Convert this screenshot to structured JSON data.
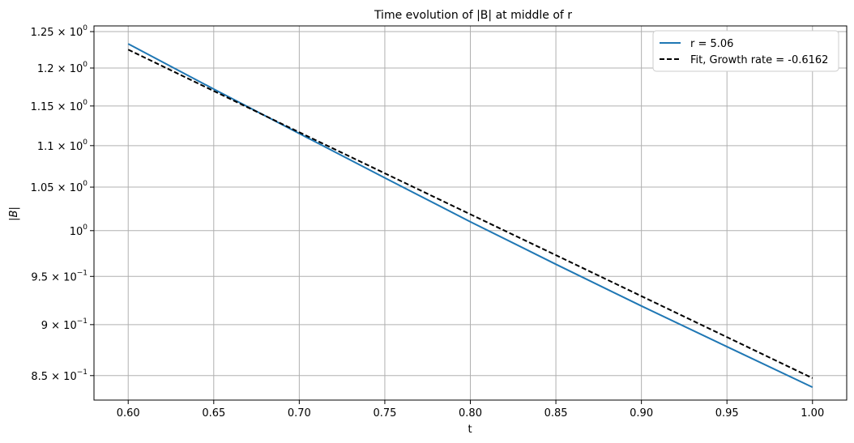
{
  "chart_data": {
    "type": "line",
    "title": "Time evolution of |B| at middle of r",
    "xlabel": "t",
    "ylabel": "|B|",
    "x_scale": "linear",
    "y_scale": "log",
    "xlim": [
      0.58,
      1.02
    ],
    "ylim": [
      0.827,
      1.258
    ],
    "grid": true,
    "legend_position": "top-right",
    "x_ticks": [
      0.6,
      0.65,
      0.7,
      0.75,
      0.8,
      0.85,
      0.9,
      0.95,
      1.0
    ],
    "x_tick_labels": [
      "0.60",
      "0.65",
      "0.70",
      "0.75",
      "0.80",
      "0.85",
      "0.90",
      "0.95",
      "1.00"
    ],
    "y_ticks": [
      {
        "value": 1.25,
        "mantissa": "1.25",
        "base": "10",
        "exp": "0"
      },
      {
        "value": 1.2,
        "mantissa": "1.2",
        "base": "10",
        "exp": "0"
      },
      {
        "value": 1.15,
        "mantissa": "1.15",
        "base": "10",
        "exp": "0"
      },
      {
        "value": 1.1,
        "mantissa": "1.1",
        "base": "10",
        "exp": "0"
      },
      {
        "value": 1.05,
        "mantissa": "1.05",
        "base": "10",
        "exp": "0"
      },
      {
        "value": 1.0,
        "mantissa": "",
        "base": "10",
        "exp": "0"
      },
      {
        "value": 0.95,
        "mantissa": "9.5",
        "base": "10",
        "exp": "−1"
      },
      {
        "value": 0.9,
        "mantissa": "9",
        "base": "10",
        "exp": "−1"
      },
      {
        "value": 0.85,
        "mantissa": "8.5",
        "base": "10",
        "exp": "−1"
      }
    ],
    "series": [
      {
        "name": "r = 5.06",
        "color": "#1f77b4",
        "style": "solid",
        "x": [
          0.6,
          0.65,
          0.7,
          0.75,
          0.8,
          0.85,
          0.9,
          0.95,
          1.0
        ],
        "y": [
          1.233,
          1.172,
          1.115,
          1.061,
          1.01,
          0.963,
          0.919,
          0.878,
          0.839
        ]
      },
      {
        "name": "Fit, Growth rate = -0.6162",
        "color": "#000000",
        "style": "dashed",
        "x": [
          0.6,
          0.65,
          0.7,
          0.75,
          0.8,
          0.85,
          0.9,
          0.95,
          1.0
        ],
        "y": [
          1.225,
          1.1695,
          1.1166,
          1.0664,
          1.0185,
          0.9729,
          0.9292,
          0.8875,
          0.8476
        ]
      }
    ]
  }
}
